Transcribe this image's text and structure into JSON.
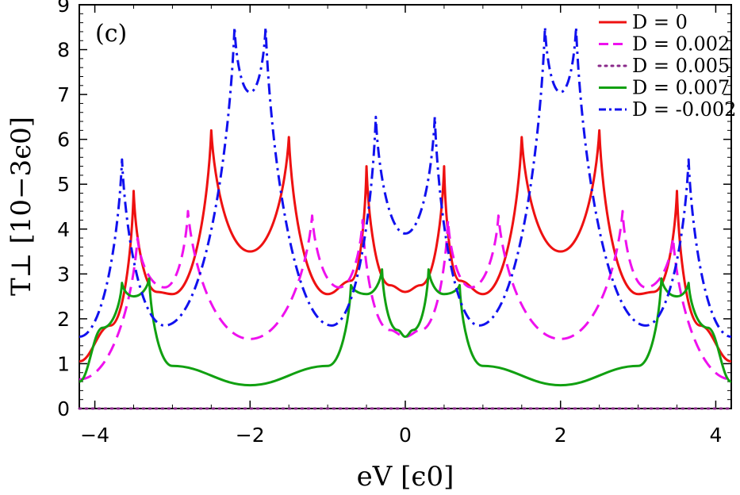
{
  "chart_data": {
    "type": "line",
    "panel_label": "(c)",
    "xlabel": "eV [ϵ0]",
    "ylabel": "T⊥ [10−3ϵ0]",
    "xlim": [
      -4.2,
      4.2
    ],
    "ylim": [
      0,
      9
    ],
    "x_ticks": [
      -4,
      -2,
      0,
      2,
      4
    ],
    "x_tick_labels": [
      "−4",
      "−2",
      "0",
      "2",
      "4"
    ],
    "y_ticks": [
      0,
      1,
      2,
      3,
      4,
      5,
      6,
      7,
      8,
      9
    ],
    "y_tick_labels": [
      "0",
      "1",
      "2",
      "3",
      "4",
      "5",
      "6",
      "7",
      "8",
      "9"
    ],
    "grid": false,
    "legend_position": "top-right",
    "series": [
      {
        "name": "D = 0",
        "color": "#ee1111",
        "dash": "solid",
        "peaks": [
          -3.5,
          -2.5,
          -1.5,
          -0.5,
          0.5,
          1.5,
          2.5,
          3.5
        ],
        "peak_values": [
          4.85,
          6.2,
          6.05,
          5.4,
          5.4,
          6.05,
          6.2,
          4.85
        ],
        "x": [
          -4.2,
          -3.8,
          -3.5,
          -3.2,
          -3.0,
          -2.5,
          -2.0,
          -1.5,
          -1.0,
          -0.7,
          -0.5,
          -0.2,
          0.0,
          0.2,
          0.5,
          0.7,
          1.0,
          1.5,
          2.0,
          2.5,
          3.0,
          3.2,
          3.5,
          3.8,
          4.2
        ],
        "y": [
          1.05,
          1.85,
          4.85,
          2.6,
          2.55,
          6.2,
          3.5,
          6.05,
          2.55,
          2.85,
          5.4,
          2.75,
          2.6,
          2.75,
          5.4,
          2.85,
          2.55,
          6.05,
          3.5,
          6.2,
          2.55,
          2.6,
          4.85,
          1.85,
          1.05
        ]
      },
      {
        "name": "D = 0.002",
        "color": "#ee11ee",
        "dash": "dashed",
        "peaks": [
          -3.45,
          -2.8,
          -1.2,
          -0.55,
          0.55,
          1.2,
          2.8,
          3.45
        ],
        "peak_values": [
          3.8,
          4.4,
          4.3,
          4.2,
          4.2,
          4.3,
          4.4,
          3.8
        ],
        "x": [
          -4.2,
          -3.45,
          -3.1,
          -2.8,
          -2.0,
          -1.2,
          -0.85,
          -0.55,
          -0.2,
          0.0,
          0.2,
          0.55,
          0.85,
          1.2,
          2.0,
          2.8,
          3.1,
          3.45,
          4.2
        ],
        "y": [
          0.65,
          3.8,
          2.7,
          4.4,
          1.55,
          4.3,
          2.7,
          4.2,
          1.75,
          1.6,
          1.75,
          4.2,
          2.7,
          4.3,
          1.55,
          4.4,
          2.7,
          3.8,
          0.65
        ]
      },
      {
        "name": "D = 0.005",
        "color": "#8a2a8a",
        "dash": "dotted",
        "x": [
          -4.2,
          4.2
        ],
        "y": [
          0.0,
          0.0
        ]
      },
      {
        "name": "D = 0.007",
        "color": "#11a011",
        "dash": "solid",
        "peaks": [
          -3.65,
          -3.3,
          -0.7,
          -0.3,
          0.3,
          0.7,
          3.3,
          3.65
        ],
        "peak_values": [
          2.8,
          2.9,
          2.75,
          3.1,
          3.1,
          2.75,
          2.9,
          2.8
        ],
        "x": [
          -4.2,
          -3.9,
          -3.65,
          -3.5,
          -3.3,
          -3.0,
          -2.0,
          -1.0,
          -0.7,
          -0.5,
          -0.3,
          -0.1,
          0.0,
          0.1,
          0.3,
          0.5,
          0.7,
          1.0,
          2.0,
          3.0,
          3.3,
          3.5,
          3.65,
          3.9,
          4.2
        ],
        "y": [
          0.6,
          1.8,
          2.8,
          2.5,
          2.9,
          0.95,
          0.52,
          0.95,
          2.75,
          2.55,
          3.1,
          1.75,
          1.6,
          1.75,
          3.1,
          2.55,
          2.75,
          0.95,
          0.52,
          0.95,
          2.9,
          2.5,
          2.8,
          1.8,
          0.6
        ]
      },
      {
        "name": "D = -0.002",
        "color": "#1111ee",
        "dash": "dash-dot",
        "peaks": [
          -3.65,
          -2.2,
          -1.8,
          -0.38,
          0.38,
          1.8,
          2.2,
          3.65
        ],
        "peak_values": [
          5.55,
          8.5,
          8.5,
          6.5,
          6.5,
          8.5,
          8.5,
          5.55
        ],
        "x": [
          -4.2,
          -3.65,
          -3.1,
          -2.2,
          -2.0,
          -1.8,
          -0.95,
          -0.38,
          0.0,
          0.38,
          0.95,
          1.8,
          2.0,
          2.2,
          3.1,
          3.65,
          4.2
        ],
        "y": [
          1.6,
          5.55,
          1.85,
          8.5,
          7.05,
          8.5,
          1.85,
          6.5,
          3.9,
          6.5,
          1.85,
          8.5,
          7.05,
          8.5,
          1.85,
          5.55,
          1.6
        ]
      }
    ]
  }
}
